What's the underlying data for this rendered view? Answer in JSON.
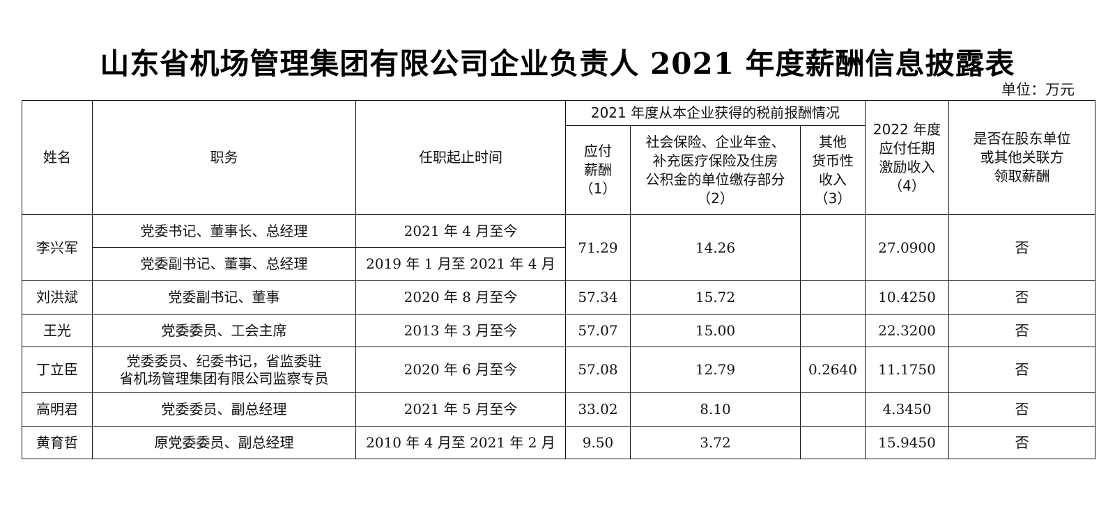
{
  "title": "山东省机场管理集团有限公司企业负责人 2021 年度薪酬信息披露表",
  "unit": "单位：万元",
  "headers": {
    "name": "姓名",
    "position": "职务",
    "tenure": "任职起止时间",
    "group": "2021 年度从本企业获得的税前报酬情况",
    "salary": [
      "应付",
      "薪酬",
      "（1）"
    ],
    "insurance": [
      "社会保险、企业年金、",
      "补充医疗保险及住房",
      "公积金的单位缴存部分",
      "（2）"
    ],
    "other": [
      "其他",
      "货币性",
      "收入",
      "（3）"
    ],
    "incentive": [
      "2022 年度",
      "应付任期",
      "激励收入",
      "（4）"
    ],
    "affiliate": [
      "是否在股东单位",
      "或其他关联方",
      "领取薪酬"
    ]
  },
  "rows": [
    {
      "name": "李兴军",
      "positions": [
        "党委书记、董事长、总经理",
        "党委副书记、董事、总经理"
      ],
      "tenures": [
        "2021 年 4 月至今",
        "2019 年 1 月至 2021 年 4 月"
      ],
      "salary": "71.29",
      "insurance": "14.26",
      "other": "",
      "incentive": "27.0900",
      "affiliate": "否"
    },
    {
      "name": "刘洪斌",
      "position": "党委副书记、董事",
      "tenure": "2020 年 8 月至今",
      "salary": "57.34",
      "insurance": "15.72",
      "other": "",
      "incentive": "10.4250",
      "affiliate": "否"
    },
    {
      "name": "王光",
      "position": "党委委员、工会主席",
      "tenure": "2013 年 3 月至今",
      "salary": "57.07",
      "insurance": "15.00",
      "other": "",
      "incentive": "22.3200",
      "affiliate": "否"
    },
    {
      "name": "丁立臣",
      "position_lines": [
        "党委委员、纪委书记，省监委驻",
        "省机场管理集团有限公司监察专员"
      ],
      "tenure": "2020 年 6 月至今",
      "salary": "57.08",
      "insurance": "12.79",
      "other": "0.2640",
      "incentive": "11.1750",
      "affiliate": "否"
    },
    {
      "name": "高明君",
      "position": "党委委员、副总经理",
      "tenure": "2021 年 5 月至今",
      "salary": "33.02",
      "insurance": "8.10",
      "other": "",
      "incentive": "4.3450",
      "affiliate": "否"
    },
    {
      "name": "黄育哲",
      "position": "原党委委员、副总经理",
      "tenure": "2010 年 4 月至 2021 年 2 月",
      "salary": "9.50",
      "insurance": "3.72",
      "other": "",
      "incentive": "15.9450",
      "affiliate": "否"
    }
  ]
}
